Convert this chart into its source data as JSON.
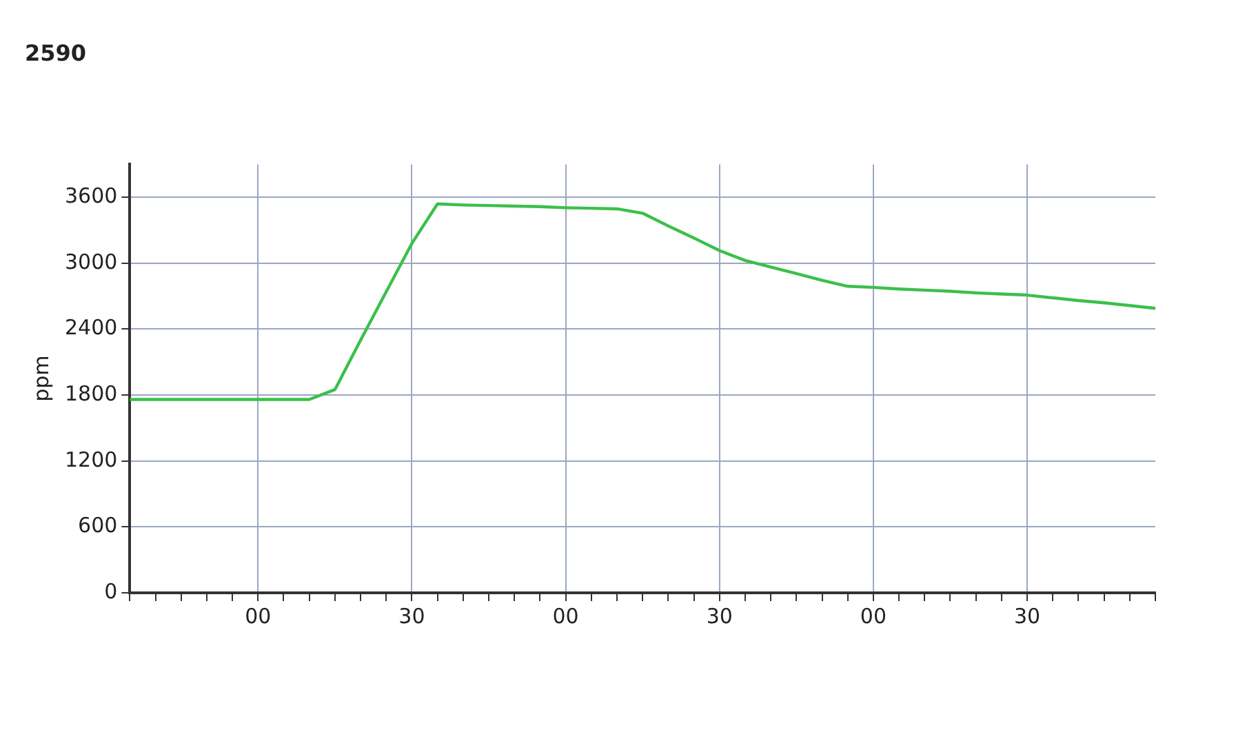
{
  "chart_data": {
    "type": "line",
    "title": "2590",
    "ylabel": "ppm",
    "categories": [
      null,
      null,
      null,
      null,
      null,
      "00",
      null,
      null,
      null,
      null,
      null,
      "30",
      null,
      null,
      null,
      null,
      null,
      "00",
      null,
      null,
      null,
      null,
      null,
      "30",
      null,
      null,
      null,
      null,
      null,
      "00",
      null,
      null,
      null,
      null,
      null,
      "30",
      null,
      null,
      null,
      null,
      null
    ],
    "series": [
      {
        "color": "#3cbf4a",
        "values": [
          1760,
          1760,
          1760,
          1760,
          1760,
          1760,
          1760,
          1760,
          1850,
          2300,
          2740,
          3180,
          3540,
          3530,
          3525,
          3520,
          3515,
          3505,
          3500,
          3495,
          3455,
          3340,
          3230,
          3115,
          3025,
          2965,
          2905,
          2845,
          2790,
          2780,
          2765,
          2755,
          2745,
          2730,
          2720,
          2710,
          2685,
          2660,
          2640,
          2615,
          2590
        ]
      }
    ],
    "ylim": [
      0,
      3900
    ],
    "yticks": [
      0,
      600,
      1200,
      1800,
      2400,
      3000,
      3600
    ],
    "grid": true,
    "legend": false,
    "marker": "none",
    "line_style": "solid"
  }
}
